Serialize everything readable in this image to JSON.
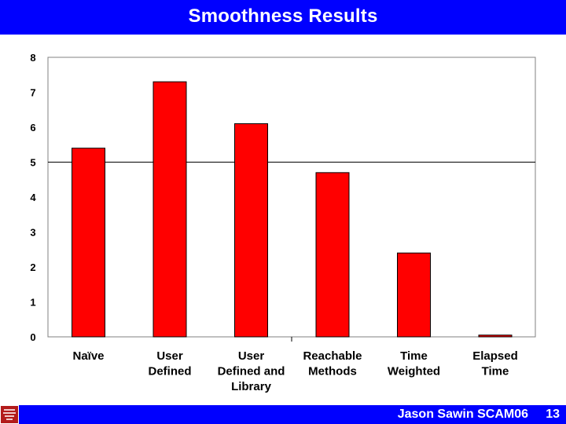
{
  "slide": {
    "title": "Smoothness Results",
    "footer_text": "Jason Sawin SCAM06",
    "page_number": "13",
    "colors": {
      "title_bar": "#0000ff",
      "title_text": "#ffffff",
      "bar_fill": "#ff0000",
      "logo": "#b31b1b"
    },
    "logo_icon": "university-seal-icon"
  },
  "chart_data": {
    "type": "bar",
    "categories": [
      [
        "Naïve"
      ],
      [
        "User",
        "Defined"
      ],
      [
        "User",
        "Defined and",
        "Library"
      ],
      [
        "Reachable",
        "Methods"
      ],
      [
        "Time",
        "Weighted"
      ],
      [
        "Elapsed",
        "Time"
      ]
    ],
    "values": [
      5.4,
      7.3,
      6.1,
      4.7,
      2.4,
      0.05
    ],
    "ylim": [
      0,
      8
    ],
    "yticks": [
      "0",
      "1",
      "2",
      "3",
      "4",
      "5",
      "6",
      "7",
      "8"
    ],
    "gridlines": [
      5
    ],
    "grid": false,
    "bar_color": "#ff0000",
    "title": "",
    "xlabel": "",
    "ylabel": ""
  }
}
